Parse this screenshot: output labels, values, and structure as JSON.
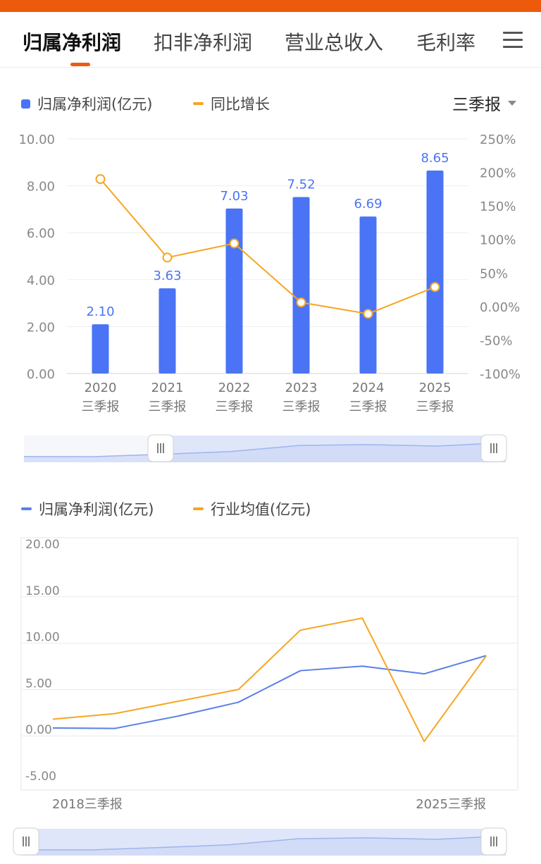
{
  "tabs": [
    {
      "label": "归属净利润",
      "active": true
    },
    {
      "label": "扣非净利润",
      "active": false
    },
    {
      "label": "营业总收入",
      "active": false
    },
    {
      "label": "毛利率",
      "active": false
    }
  ],
  "menu_icon": "hamburger-menu-icon",
  "period_selector": {
    "label": "三季报"
  },
  "chart1_legend": [
    {
      "label": "归属净利润(亿元)",
      "color": "#4a74f5",
      "shape": "square"
    },
    {
      "label": "同比增长",
      "color": "#f5a623",
      "shape": "line"
    }
  ],
  "chart2_legend": [
    {
      "label": "归属净利润(亿元)",
      "color": "#5b7fe8",
      "shape": "line"
    },
    {
      "label": "行业均值(亿元)",
      "color": "#f5a623",
      "shape": "line"
    }
  ],
  "chart_data": [
    {
      "type": "bar",
      "categories": [
        "2020\n三季报",
        "2021\n三季报",
        "2022\n三季报",
        "2023\n三季报",
        "2024\n三季报",
        "2025\n三季报"
      ],
      "y_ticks": [
        "0.00",
        "2.00",
        "4.00",
        "6.00",
        "8.00",
        "10.00"
      ],
      "y2_ticks": [
        "-100%",
        "-50%",
        "0.00%",
        "50%",
        "100%",
        "150%",
        "200%",
        "250%"
      ],
      "ylim": [
        0,
        10
      ],
      "y2lim": [
        -100,
        250
      ],
      "series": [
        {
          "name": "归属净利润(亿元)",
          "type": "bar",
          "color": "#4a74f5",
          "axis": "left",
          "values": [
            2.1,
            3.63,
            7.03,
            7.52,
            6.69,
            8.65
          ],
          "labels": [
            "2.10",
            "3.63",
            "7.03",
            "7.52",
            "6.69",
            "8.65"
          ]
        },
        {
          "name": "同比增长",
          "type": "line",
          "color": "#f5a623",
          "axis": "right",
          "values": [
            190,
            73,
            94,
            6,
            -11,
            29
          ]
        }
      ],
      "legend": "top-left",
      "grid": true
    },
    {
      "type": "line",
      "x_labels": [
        "2018三季报",
        "2025三季报"
      ],
      "y_ticks": [
        "-5.00",
        "0.00",
        "5.00",
        "10.00",
        "15.00",
        "20.00"
      ],
      "ylim": [
        -5,
        20
      ],
      "series": [
        {
          "name": "归属净利润(亿元)",
          "color": "#5b7fe8",
          "values": [
            0.85,
            0.8,
            2.1,
            3.63,
            7.03,
            7.52,
            6.69,
            8.65
          ]
        },
        {
          "name": "行业均值(亿元)",
          "color": "#f5a623",
          "values": [
            1.8,
            2.4,
            3.7,
            5.0,
            11.4,
            12.7,
            -0.6,
            8.6
          ]
        }
      ],
      "legend": "top-left",
      "grid": true
    }
  ]
}
